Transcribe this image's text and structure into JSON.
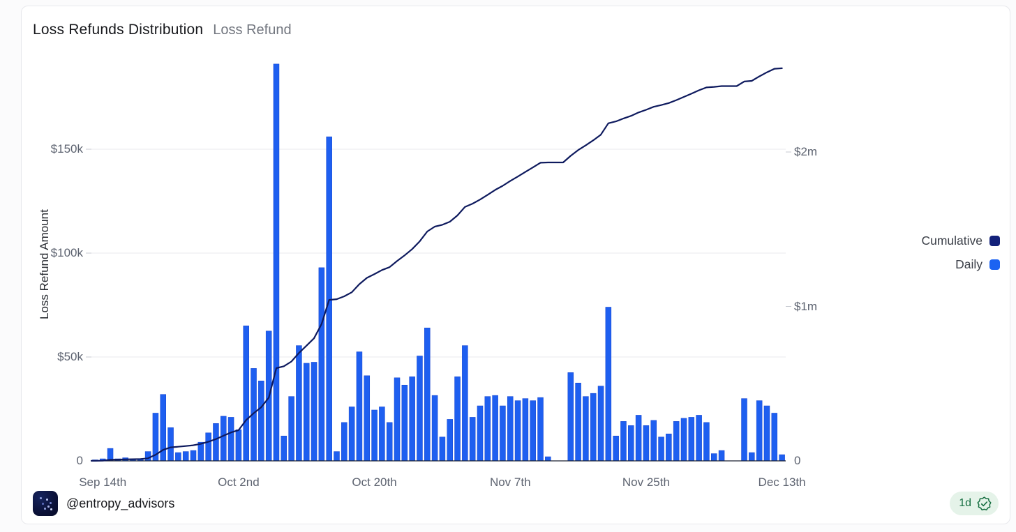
{
  "header": {
    "title": "Loss Refunds Distribution",
    "subtitle": "Loss Refund"
  },
  "legend": [
    {
      "label": "Cumulative",
      "color": "#13217a"
    },
    {
      "label": "Daily",
      "color": "#1c63f2"
    }
  ],
  "footer": {
    "handle": "@entropy_advisors",
    "badge_label": "1d",
    "badge_icon": "verified-seal-icon",
    "badge_color": "#156e40",
    "badge_bg": "#e5f3e9"
  },
  "colors": {
    "bar": "#1e5ff0",
    "bar_edge": "#1443cf",
    "line": "#0e1a5e",
    "grid": "#e9eaee",
    "axis": "#1b2130",
    "tick_text": "#5d6370"
  },
  "chart_data": {
    "type": "bar+line combo (daily bars on left axis, cumulative line on right axis)",
    "unit": "USD thousands",
    "title": "Loss Refunds Distribution",
    "ylabel_left": "Loss Refund Amount",
    "grid": "horizontal only",
    "categories": [
      "Sep 13",
      "Sep 14",
      "Sep 15",
      "Sep 16",
      "Sep 17",
      "Sep 18",
      "Sep 19",
      "Sep 20",
      "Sep 21",
      "Sep 22",
      "Sep 23",
      "Sep 24",
      "Sep 25",
      "Sep 26",
      "Sep 27",
      "Sep 28",
      "Sep 29",
      "Sep 30",
      "Oct 1",
      "Oct 2",
      "Oct 3",
      "Oct 4",
      "Oct 5",
      "Oct 6",
      "Oct 7",
      "Oct 8",
      "Oct 9",
      "Oct 10",
      "Oct 11",
      "Oct 12",
      "Oct 13",
      "Oct 14",
      "Oct 15",
      "Oct 16",
      "Oct 17",
      "Oct 18",
      "Oct 19",
      "Oct 20",
      "Oct 21",
      "Oct 22",
      "Oct 23",
      "Oct 24",
      "Oct 25",
      "Oct 26",
      "Oct 27",
      "Oct 28",
      "Oct 29",
      "Oct 30",
      "Oct 31",
      "Nov 1",
      "Nov 2",
      "Nov 3",
      "Nov 4",
      "Nov 5",
      "Nov 6",
      "Nov 7",
      "Nov 8",
      "Nov 9",
      "Nov 10",
      "Nov 11",
      "Nov 12",
      "Nov 13",
      "Nov 14",
      "Nov 15",
      "Nov 16",
      "Nov 17",
      "Nov 18",
      "Nov 19",
      "Nov 20",
      "Nov 21",
      "Nov 22",
      "Nov 23",
      "Nov 24",
      "Nov 25",
      "Nov 26",
      "Nov 27",
      "Nov 28",
      "Nov 29",
      "Nov 30",
      "Dec 1",
      "Dec 2",
      "Dec 3",
      "Dec 4",
      "Dec 5",
      "Dec 6",
      "Dec 7",
      "Dec 8",
      "Dec 9",
      "Dec 10",
      "Dec 11",
      "Dec 12",
      "Dec 13"
    ],
    "series": [
      {
        "name": "Daily",
        "axis": "left",
        "values": [
          0.5,
          1,
          6,
          1,
          1.5,
          1,
          1,
          4.5,
          23,
          32,
          16,
          4,
          4.5,
          5,
          9,
          13.5,
          18,
          21.5,
          21,
          15,
          65,
          44.5,
          38.5,
          62.5,
          191,
          12,
          31,
          55.5,
          47,
          47.5,
          93,
          156,
          4.5,
          18.5,
          26,
          52.5,
          41,
          24.5,
          26,
          18.5,
          40,
          36.5,
          40.5,
          50.5,
          64,
          31.5,
          11.5,
          20,
          40.5,
          55.5,
          21,
          26.5,
          31,
          31.5,
          26.5,
          31,
          29,
          30,
          29,
          30.5,
          2,
          0,
          0,
          42.5,
          37.5,
          31,
          32.5,
          36,
          74,
          12,
          19,
          17,
          22,
          17,
          19.5,
          11.5,
          13,
          19,
          20.5,
          21,
          22,
          18.5,
          3.5,
          5,
          0,
          0,
          30,
          4,
          29,
          26.5,
          23,
          3
        ]
      },
      {
        "name": "Cumulative",
        "axis": "right",
        "derivation": "running sum of Daily, ends near $2.54m"
      }
    ],
    "left_axis": {
      "label": "Loss Refund Amount",
      "ticks": [
        {
          "label": "0",
          "value": 0
        },
        {
          "label": "$50k",
          "value": 50
        },
        {
          "label": "$100k",
          "value": 100
        },
        {
          "label": "$150k",
          "value": 150
        }
      ],
      "range_k": [
        0,
        195
      ]
    },
    "right_axis": {
      "ticks": [
        {
          "label": "0",
          "value": 0
        },
        {
          "label": "$1m",
          "value": 1000
        },
        {
          "label": "$2m",
          "value": 2000
        }
      ],
      "range_k": [
        0,
        2600
      ]
    },
    "x_axis": {
      "ticks": [
        {
          "label": "Sep 14th",
          "index": 1
        },
        {
          "label": "Oct 2nd",
          "index": 19
        },
        {
          "label": "Oct 20th",
          "index": 37
        },
        {
          "label": "Nov 7th",
          "index": 55
        },
        {
          "label": "Nov 25th",
          "index": 73
        },
        {
          "label": "Dec 13th",
          "index": 91
        }
      ]
    },
    "legend_position": "middle-right, outside plot"
  }
}
